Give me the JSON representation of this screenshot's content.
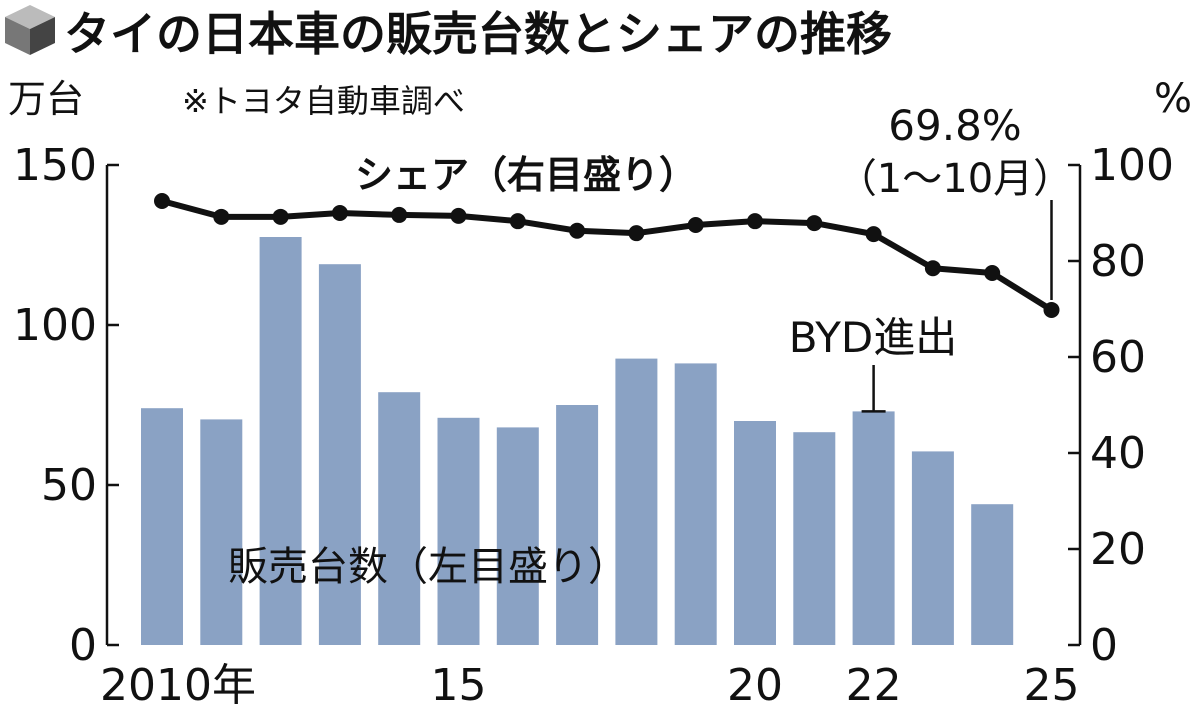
{
  "chart_data": {
    "type": "bar+line",
    "title": "タイの日本車の販売台数とシェアの推移",
    "source_note": "※トヨタ自動車調べ",
    "left_unit": "万台",
    "right_unit": "%",
    "x": [
      2010,
      2011,
      2012,
      2013,
      2014,
      2015,
      2016,
      2017,
      2018,
      2019,
      2020,
      2021,
      2022,
      2023,
      2024,
      2025
    ],
    "x_tick_labels": [
      {
        "year": 2010,
        "label": "2010年"
      },
      {
        "year": 2015,
        "label": "15"
      },
      {
        "year": 2020,
        "label": "20"
      },
      {
        "year": 2022,
        "label": "22"
      },
      {
        "year": 2025,
        "label": "25"
      }
    ],
    "left_axis": {
      "ylim": [
        0,
        150
      ],
      "ticks": [
        "0",
        "50",
        "100",
        "150"
      ]
    },
    "right_axis": {
      "ylim": [
        0,
        100
      ],
      "ticks": [
        "0",
        "20",
        "40",
        "60",
        "80",
        "100"
      ]
    },
    "series": [
      {
        "name": "販売台数（左目盛り）",
        "type": "bar",
        "axis": "left",
        "color": "#8aa2c4",
        "values": [
          74,
          70.5,
          127.5,
          119,
          79,
          71,
          68,
          75,
          89.5,
          88,
          70,
          66.5,
          73,
          60.5,
          44,
          null
        ]
      },
      {
        "name": "シェア（右目盛り）",
        "type": "line",
        "axis": "right",
        "color": "#111111",
        "values": [
          92.5,
          89.2,
          89.2,
          90,
          89.6,
          89.4,
          88.3,
          86.3,
          85.8,
          87.5,
          88.3,
          87.9,
          85.6,
          78.5,
          77.5,
          69.8
        ]
      }
    ],
    "annotations": [
      {
        "text": "69.8%",
        "subtext": "（1〜10月）",
        "year": 2025
      },
      {
        "text": "BYD進出",
        "year": 2022
      }
    ],
    "grid": false
  }
}
